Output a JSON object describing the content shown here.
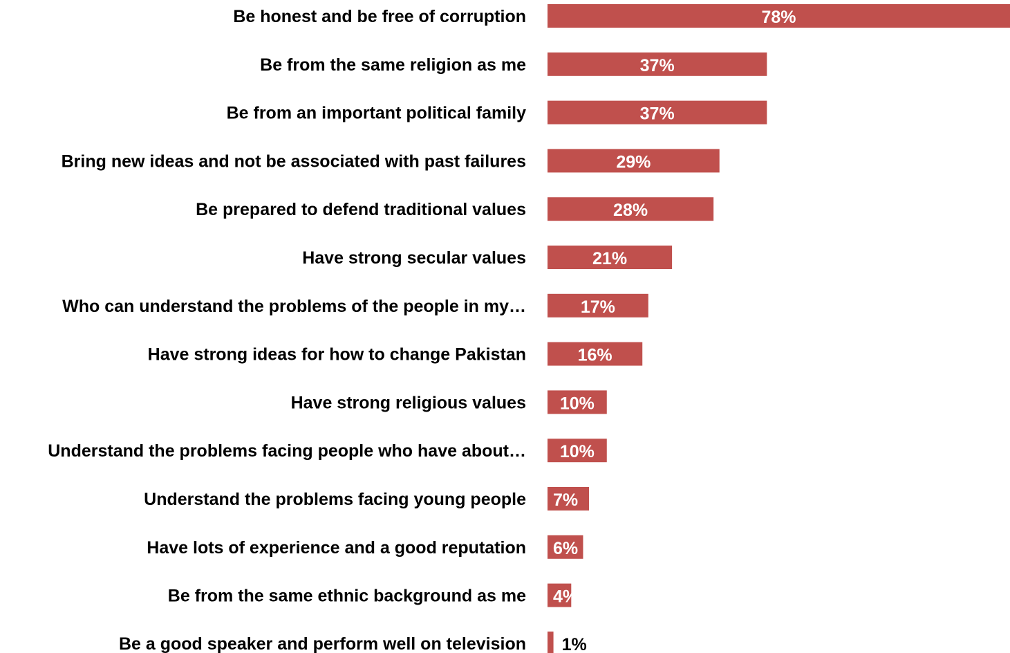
{
  "chart_data": {
    "type": "bar",
    "orientation": "horizontal",
    "categories": [
      "Be honest and be free of corruption",
      "Be from the same religion as me",
      "Be from an important political family",
      "Bring new ideas and not be associated with past failures",
      "Be prepared to defend traditional values",
      "Have strong secular values",
      "Who can understand the problems of the people in my…",
      "Have strong ideas for how to change Pakistan",
      "Have strong religious values",
      "Understand the problems facing people who have about…",
      "Understand the problems facing young people",
      "Have lots of experience and a good reputation",
      "Be from the same ethnic background as me",
      "Be a good speaker and perform well on television"
    ],
    "values": [
      78,
      37,
      37,
      29,
      28,
      21,
      17,
      16,
      10,
      10,
      7,
      6,
      4,
      1
    ],
    "value_labels": [
      "78%",
      "37%",
      "37%",
      "29%",
      "28%",
      "21%",
      "17%",
      "16%",
      "10%",
      "10%",
      "7%",
      "6%",
      "4%",
      "1%"
    ],
    "bar_color": "#c0504d",
    "title": "",
    "xlabel": "",
    "ylabel": "",
    "xlim": [
      0,
      78
    ],
    "grid": false,
    "legend": "none"
  }
}
